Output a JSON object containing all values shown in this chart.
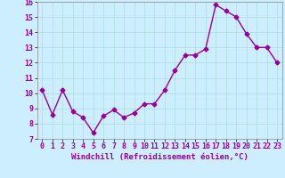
{
  "x": [
    0,
    1,
    2,
    3,
    4,
    5,
    6,
    7,
    8,
    9,
    10,
    11,
    12,
    13,
    14,
    15,
    16,
    17,
    18,
    19,
    20,
    21,
    22,
    23
  ],
  "y": [
    10.2,
    8.6,
    10.2,
    8.8,
    8.4,
    7.4,
    8.5,
    8.9,
    8.4,
    8.7,
    9.3,
    9.3,
    10.2,
    11.5,
    12.5,
    12.5,
    12.9,
    15.8,
    15.4,
    15.0,
    13.9,
    13.0,
    13.0,
    12.0
  ],
  "line_color": "#990099",
  "marker": "D",
  "marker_size": 2.5,
  "line_width": 1.0,
  "bg_color": "#cceeff",
  "grid_color": "#aadddd",
  "xlabel": "Windchill (Refroidissement éolien,°C)",
  "xlabel_fontsize": 6.5,
  "tick_fontsize": 6.0,
  "ylim": [
    7,
    16
  ],
  "yticks": [
    7,
    8,
    9,
    10,
    11,
    12,
    13,
    14,
    15,
    16
  ],
  "xticks": [
    0,
    1,
    2,
    3,
    4,
    5,
    6,
    7,
    8,
    9,
    10,
    11,
    12,
    13,
    14,
    15,
    16,
    17,
    18,
    19,
    20,
    21,
    22,
    23
  ],
  "spine_color": "#888888",
  "title_color": "#990099"
}
